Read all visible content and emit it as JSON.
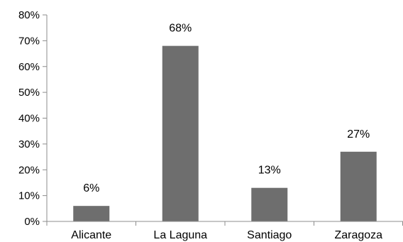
{
  "chart_data": {
    "type": "bar",
    "categories": [
      "Alicante",
      "La Laguna",
      "Santiago",
      "Zaragoza"
    ],
    "values": [
      6,
      68,
      13,
      27
    ],
    "data_labels": [
      "6%",
      "68%",
      "13%",
      "27%"
    ],
    "ylim": [
      0,
      80
    ],
    "yticks": [
      0,
      10,
      20,
      30,
      40,
      50,
      60,
      70,
      80
    ],
    "ytick_labels": [
      "0%",
      "10%",
      "20%",
      "30%",
      "40%",
      "50%",
      "60%",
      "70%",
      "80%"
    ],
    "grid": false,
    "legend": "none",
    "bar_color": "#6e6e6e",
    "axis_color": "#8c8c8c"
  }
}
